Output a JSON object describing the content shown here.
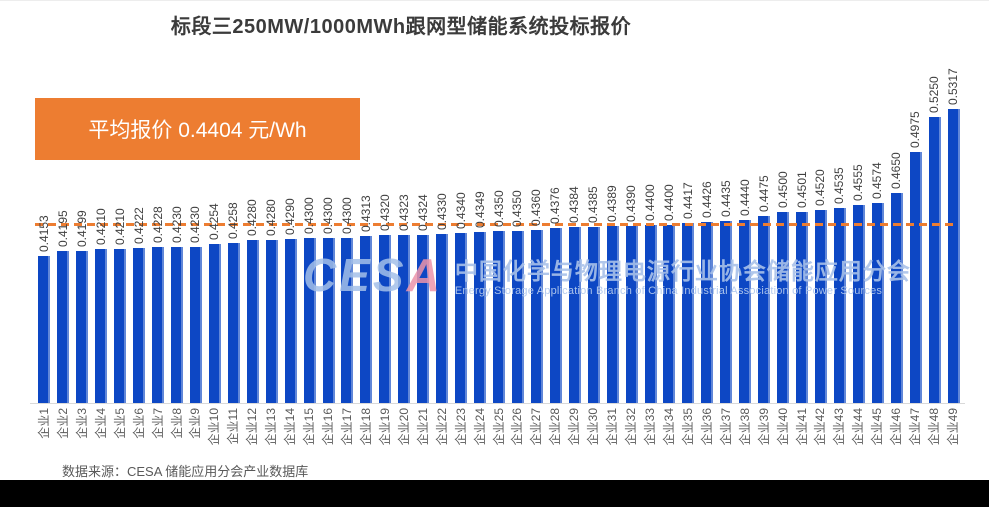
{
  "title": "标段三250MW/1000MWh跟网型储能系统投标报价",
  "average": {
    "label": "平均报价 0.4404 元/Wh",
    "value": 0.4404
  },
  "source": "数据来源：CESA 储能应用分会产业数据库",
  "watermark": {
    "acronym_primary": "CES",
    "acronym_accent": "A",
    "cn": "中国化学与物理电源行业协会储能应用分会",
    "en": "Energy Storage Application Branch of China Industrial Association of Power Sources"
  },
  "colors": {
    "bar": "#0d47c4",
    "accent_orange": "#ED7D31",
    "axis": "#d9d9d9",
    "value_label": "#404040",
    "x_label": "#595959",
    "footer_bar": "#000000"
  },
  "chart_data": {
    "type": "bar",
    "title": "标段三250MW/1000MWh跟网型储能系统投标报价",
    "unit": "元/Wh",
    "categories": [
      "企业1",
      "企业2",
      "企业3",
      "企业4",
      "企业5",
      "企业6",
      "企业7",
      "企业8",
      "企业9",
      "企业10",
      "企业11",
      "企业12",
      "企业13",
      "企业14",
      "企业15",
      "企业16",
      "企业17",
      "企业18",
      "企业19",
      "企业20",
      "企业21",
      "企业22",
      "企业23",
      "企业24",
      "企业25",
      "企业26",
      "企业27",
      "企业28",
      "企业29",
      "企业30",
      "企业31",
      "企业32",
      "企业33",
      "企业34",
      "企业35",
      "企业36",
      "企业37",
      "企业38",
      "企业39",
      "企业40",
      "企业41",
      "企业42",
      "企业43",
      "企业44",
      "企业45",
      "企业46",
      "企业47",
      "企业48",
      "企业49"
    ],
    "values": [
      0.4153,
      0.4195,
      0.4199,
      0.421,
      0.421,
      0.4222,
      0.4228,
      0.423,
      0.423,
      0.4254,
      0.4258,
      0.428,
      0.428,
      0.429,
      0.43,
      0.43,
      0.43,
      0.4313,
      0.432,
      0.4323,
      0.4324,
      0.433,
      0.434,
      0.4349,
      0.435,
      0.435,
      0.436,
      0.4376,
      0.4384,
      0.4385,
      0.4389,
      0.439,
      0.44,
      0.44,
      0.4417,
      0.4426,
      0.4435,
      0.444,
      0.4475,
      0.45,
      0.4501,
      0.452,
      0.4535,
      0.4555,
      0.4574,
      0.465,
      0.4975,
      0.525,
      0.5317
    ],
    "average_line": 0.4404,
    "ylim": [
      0.3,
      0.54
    ],
    "grid": false,
    "legend": false,
    "value_label_decimals": 4,
    "value_label_rotation": -90,
    "x_label_rotation": -90
  }
}
